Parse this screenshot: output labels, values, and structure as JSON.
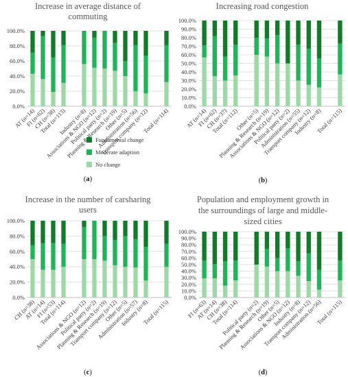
{
  "colors": {
    "no_change": "#9fd8a8",
    "moderate": "#22b35a",
    "fundamental": "#137a2a",
    "grid": "#d9d9d9",
    "axis": "#bfbfbf"
  },
  "legend": {
    "items": [
      {
        "label": "Fundamental change",
        "color_key": "fundamental"
      },
      {
        "label": "Moderate adaption",
        "color_key": "moderate"
      },
      {
        "label": "No change",
        "color_key": "no_change"
      }
    ]
  },
  "chart_data": [
    {
      "type": "bar",
      "stacked": true,
      "panel_label": "a",
      "title_lines": [
        "Increase in average distance of",
        "commuting"
      ],
      "ylim": [
        0,
        100
      ],
      "yticks": [
        "0.0%",
        "20.0%",
        "40.0%",
        "60.0%",
        "80.0%",
        "100.0%"
      ],
      "categories": [
        "AT (n=14)",
        "FI (n=62)",
        "CH (n=38)",
        "Total (n=113)",
        "",
        "Industry (n=8)",
        "Associations & NGO (n=12)",
        "Political party (n=2)",
        "Planning & Research (n=19)",
        "Other (n=5)",
        "Administration (n=56)",
        "Transport company (n=12)",
        "",
        "Total (n=114)"
      ],
      "series": [
        {
          "name": "No change",
          "values": [
            43,
            36,
            19,
            31,
            null,
            56,
            51,
            50,
            47,
            40,
            20,
            17,
            null,
            32
          ]
        },
        {
          "name": "Moderate adaption",
          "values": [
            28,
            57,
            46,
            50,
            null,
            44,
            40,
            50,
            37,
            20,
            61,
            50,
            null,
            49
          ]
        },
        {
          "name": "Fundamental change",
          "values": [
            29,
            7,
            35,
            19,
            null,
            0,
            9,
            0,
            16,
            40,
            19,
            33,
            null,
            19
          ]
        }
      ]
    },
    {
      "type": "bar",
      "stacked": true,
      "panel_label": "b",
      "title_lines": [
        "Increasing road congestion"
      ],
      "ylim": [
        0,
        100
      ],
      "yticks": [
        "0.0%",
        "10.0%",
        "20.0%",
        "30.0%",
        "40.0%",
        "50.0%",
        "60.0%",
        "70.0%",
        "80.0%",
        "90.0%",
        "100.0%"
      ],
      "categories": [
        "AT (n=14)",
        "FI (n=62)",
        "CH (n=37)",
        "Total (n=112)",
        "",
        "Other (n=5)",
        "Planning & Research (n=19)",
        "Associations & NGO (n=12)",
        "Political party (n=2)",
        "Administration (n=55)",
        "Transport company (n=12)",
        "Industry (n=8)",
        "",
        "Total (n=115)"
      ],
      "series": [
        {
          "name": "No change",
          "values": [
            57,
            35,
            30,
            36,
            null,
            60,
            58,
            50,
            50,
            30,
            25,
            22,
            null,
            37
          ]
        },
        {
          "name": "Moderate adaption",
          "values": [
            14,
            47,
            28,
            36,
            null,
            20,
            21,
            33,
            0,
            42,
            42,
            34,
            null,
            36
          ]
        },
        {
          "name": "Fundamental change",
          "values": [
            29,
            18,
            42,
            28,
            null,
            20,
            21,
            17,
            50,
            28,
            33,
            44,
            null,
            27
          ]
        }
      ]
    },
    {
      "type": "bar",
      "stacked": true,
      "panel_label": "c",
      "title_lines": [
        "Increase in the number of carsharing",
        "users"
      ],
      "ylim": [
        0,
        100
      ],
      "yticks": [
        "0.0%",
        "20.0%",
        "40.0%",
        "60.0%",
        "80.0%",
        "100.0%"
      ],
      "categories": [
        "CH (n=38)",
        "AT (n=14)",
        "FI (n=53)",
        "Total (n=114)",
        "",
        "Associations & NGO (n=12)",
        "Political party (n=2)",
        "Planning & Research (n=19)",
        "Transport company (n=12)",
        "Other (n=5)",
        "Administration (n=57)",
        "Industry (n=8)",
        "",
        "Total (n=115)"
      ],
      "series": [
        {
          "name": "No change",
          "values": [
            50,
            36,
            36,
            40,
            null,
            50,
            50,
            48,
            42,
            40,
            39,
            22,
            null,
            40
          ]
        },
        {
          "name": "Moderate adaption",
          "values": [
            18,
            35,
            35,
            30,
            null,
            42,
            50,
            32,
            33,
            40,
            37,
            44,
            null,
            30
          ]
        },
        {
          "name": "Fundamental change",
          "values": [
            32,
            29,
            29,
            30,
            null,
            8,
            0,
            20,
            25,
            20,
            24,
            34,
            null,
            30
          ]
        }
      ]
    },
    {
      "type": "bar",
      "stacked": true,
      "panel_label": "d",
      "title_lines": [
        "Population and employment growth in",
        "the surroundings of large and middle-",
        "sized cities"
      ],
      "ylim": [
        0,
        100
      ],
      "yticks": [
        "0.0%",
        "10.0%",
        "20.0%",
        "30.0%",
        "40.0%",
        "50.0%",
        "60.0%",
        "70.0%",
        "80.0%",
        "90.0%",
        "100.0%"
      ],
      "categories": [
        "FI (n=63)",
        "AT (n=14)",
        "CH (n=38)",
        "Total (n=114)",
        "",
        "Political party (n=2)",
        "Planning & Research (n=19)",
        "Other (n=5)",
        "Associations & NGO (n=12)",
        "Industry (n=8)",
        "Transport company (n=12)",
        "Administration (n=56)",
        "",
        "Total (n=115)"
      ],
      "series": [
        {
          "name": "No change",
          "values": [
            29,
            29,
            18,
            26,
            null,
            50,
            47,
            40,
            40,
            33,
            25,
            12,
            null,
            26
          ]
        },
        {
          "name": "Moderate adaption",
          "values": [
            27,
            22,
            37,
            30,
            null,
            0,
            27,
            20,
            35,
            22,
            42,
            30,
            null,
            30
          ]
        },
        {
          "name": "Fundamental change",
          "values": [
            44,
            49,
            45,
            44,
            null,
            50,
            26,
            40,
            25,
            45,
            33,
            58,
            null,
            44
          ]
        }
      ]
    }
  ]
}
